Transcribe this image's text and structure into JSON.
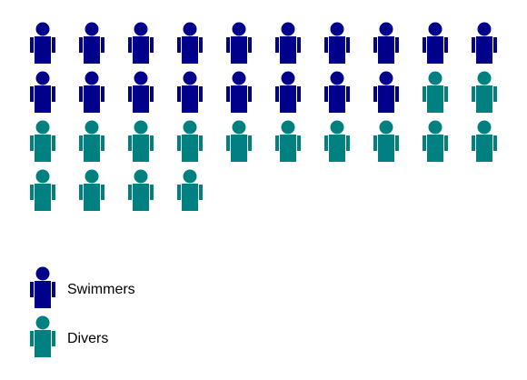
{
  "chart_data": {
    "type": "pictograph",
    "series": [
      {
        "name": "Swimmers",
        "value": 18,
        "color": "#00008b"
      },
      {
        "name": "Divers",
        "value": 16,
        "color": "#008080"
      }
    ],
    "icons_per_row": 10,
    "icon": "person-icon",
    "legend_position": "bottom-left"
  }
}
